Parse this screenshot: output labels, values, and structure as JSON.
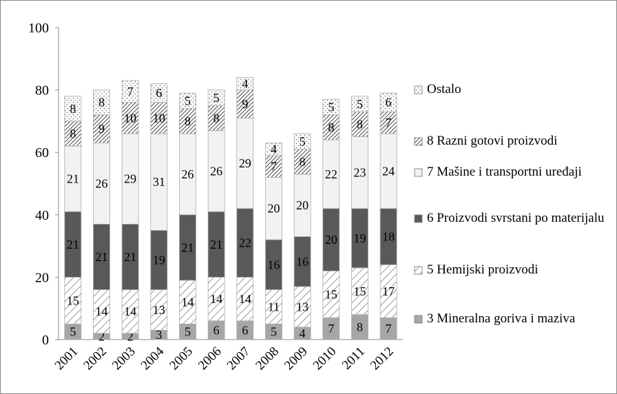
{
  "chart_data": {
    "type": "stacked_bar",
    "categories": [
      "2001",
      "2002",
      "2003",
      "2004",
      "2005",
      "2006",
      "2007",
      "2008",
      "2009",
      "2010",
      "2011",
      "2012"
    ],
    "series": [
      {
        "name": "3 Mineralna goriva i maziva",
        "color": "#a6a6a6",
        "values": [
          5,
          2,
          2,
          3,
          5,
          6,
          6,
          5,
          4,
          7,
          8,
          7
        ]
      },
      {
        "name": "5 Hemijski proizvodi",
        "color": "#ffffff",
        "values": [
          15,
          14,
          14,
          13,
          14,
          14,
          14,
          11,
          13,
          15,
          15,
          17
        ]
      },
      {
        "name": "6 Proizvodi svrstani po materijalu",
        "color": "#595959",
        "values": [
          21,
          21,
          21,
          19,
          21,
          21,
          22,
          16,
          16,
          20,
          19,
          18
        ]
      },
      {
        "name": "7 Mašine i transportni uređaji",
        "color": "#f2f2f2",
        "values": [
          21,
          26,
          29,
          31,
          26,
          26,
          29,
          20,
          20,
          22,
          23,
          24
        ]
      },
      {
        "name": "8 Razni gotovi proizvodi",
        "color": "#ffffff",
        "values": [
          8,
          9,
          10,
          10,
          8,
          8,
          9,
          7,
          8,
          8,
          8,
          7
        ]
      },
      {
        "name": "Ostalo",
        "color": "#ffffff",
        "values": [
          8,
          8,
          7,
          6,
          5,
          5,
          4,
          4,
          5,
          5,
          5,
          6
        ]
      }
    ],
    "ylim": [
      0,
      100
    ],
    "yticks": [
      0,
      20,
      40,
      60,
      80,
      100
    ],
    "legend": "right"
  }
}
